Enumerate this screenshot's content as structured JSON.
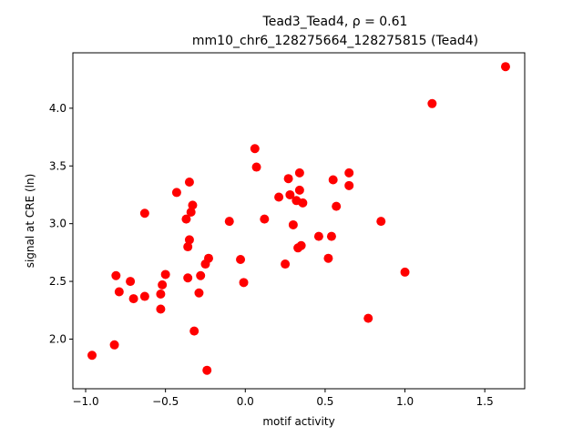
{
  "chart_data": {
    "type": "scatter",
    "title_line1": "Tead3_Tead4, ρ = 0.61",
    "title_line2": "mm10_chr6_128275664_128275815 (Tead4)",
    "xlabel": "motif activity",
    "ylabel": "signal at CRE (ln)",
    "xlim": [
      -1.08,
      1.75
    ],
    "ylim": [
      1.57,
      4.48
    ],
    "xticks": [
      -1.0,
      -0.5,
      0.0,
      0.5,
      1.0,
      1.5
    ],
    "xtick_labels": [
      "−1.0",
      "−0.5",
      "0.0",
      "0.5",
      "1.0",
      "1.5"
    ],
    "yticks": [
      2.0,
      2.5,
      3.0,
      3.5,
      4.0
    ],
    "ytick_labels": [
      "2.0",
      "2.5",
      "3.0",
      "3.5",
      "4.0"
    ],
    "grid": false,
    "point_color": "#ff0000",
    "points": [
      {
        "x": -0.96,
        "y": 1.86
      },
      {
        "x": -0.82,
        "y": 1.95
      },
      {
        "x": -0.81,
        "y": 2.55
      },
      {
        "x": -0.79,
        "y": 2.41
      },
      {
        "x": -0.72,
        "y": 2.5
      },
      {
        "x": -0.7,
        "y": 2.35
      },
      {
        "x": -0.63,
        "y": 2.37
      },
      {
        "x": -0.63,
        "y": 3.09
      },
      {
        "x": -0.53,
        "y": 2.26
      },
      {
        "x": -0.53,
        "y": 2.39
      },
      {
        "x": -0.52,
        "y": 2.47
      },
      {
        "x": -0.5,
        "y": 2.56
      },
      {
        "x": -0.43,
        "y": 3.27
      },
      {
        "x": -0.37,
        "y": 3.04
      },
      {
        "x": -0.36,
        "y": 2.53
      },
      {
        "x": -0.36,
        "y": 2.8
      },
      {
        "x": -0.35,
        "y": 2.86
      },
      {
        "x": -0.35,
        "y": 3.36
      },
      {
        "x": -0.34,
        "y": 3.1
      },
      {
        "x": -0.33,
        "y": 3.16
      },
      {
        "x": -0.32,
        "y": 2.07
      },
      {
        "x": -0.29,
        "y": 2.4
      },
      {
        "x": -0.28,
        "y": 2.55
      },
      {
        "x": -0.25,
        "y": 2.65
      },
      {
        "x": -0.24,
        "y": 1.73
      },
      {
        "x": -0.23,
        "y": 2.7
      },
      {
        "x": -0.1,
        "y": 3.02
      },
      {
        "x": -0.03,
        "y": 2.69
      },
      {
        "x": -0.01,
        "y": 2.49
      },
      {
        "x": 0.06,
        "y": 3.65
      },
      {
        "x": 0.07,
        "y": 3.49
      },
      {
        "x": 0.12,
        "y": 3.04
      },
      {
        "x": 0.21,
        "y": 3.23
      },
      {
        "x": 0.25,
        "y": 2.65
      },
      {
        "x": 0.27,
        "y": 3.39
      },
      {
        "x": 0.28,
        "y": 3.25
      },
      {
        "x": 0.3,
        "y": 2.99
      },
      {
        "x": 0.32,
        "y": 3.2
      },
      {
        "x": 0.33,
        "y": 2.79
      },
      {
        "x": 0.34,
        "y": 3.44
      },
      {
        "x": 0.34,
        "y": 3.29
      },
      {
        "x": 0.35,
        "y": 2.81
      },
      {
        "x": 0.36,
        "y": 3.18
      },
      {
        "x": 0.46,
        "y": 2.89
      },
      {
        "x": 0.52,
        "y": 2.7
      },
      {
        "x": 0.54,
        "y": 2.89
      },
      {
        "x": 0.55,
        "y": 3.38
      },
      {
        "x": 0.57,
        "y": 3.15
      },
      {
        "x": 0.65,
        "y": 3.44
      },
      {
        "x": 0.65,
        "y": 3.33
      },
      {
        "x": 0.77,
        "y": 2.18
      },
      {
        "x": 0.85,
        "y": 3.02
      },
      {
        "x": 1.0,
        "y": 2.58
      },
      {
        "x": 1.17,
        "y": 4.04
      },
      {
        "x": 1.63,
        "y": 4.36
      }
    ]
  }
}
